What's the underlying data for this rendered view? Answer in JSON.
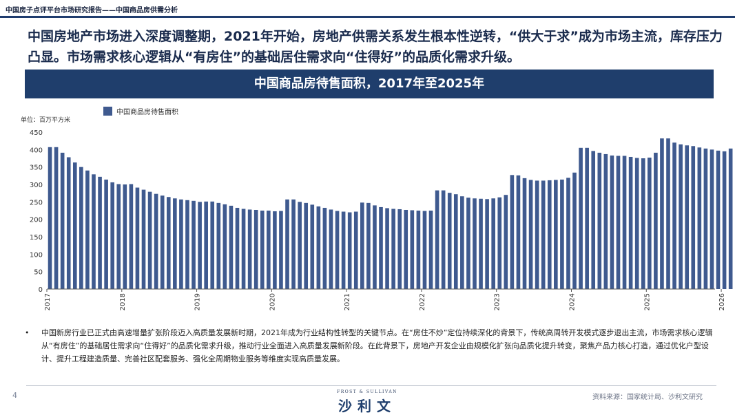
{
  "header": {
    "doc_title": "中国房子点评平台市场研究报告——中国商品房供需分析"
  },
  "headline": "中国房地产市场进入深度调整期，2021年开始，房地产供需关系发生根本性逆转，“供大于求”成为市场主流，库存压力凸显。市场需求核心逻辑从“有房住”的基础居住需求向“住得好”的品质化需求升级。",
  "banner": "中国商品房待售面积，2017年至2025年",
  "chart_data": {
    "type": "bar",
    "title": "中国商品房待售面积，2017年至2025年",
    "ylabel": "单位：百万平方米",
    "legend": "中国商品房待售面积",
    "ylim": [
      0,
      450
    ],
    "yticks": [
      "0",
      "50",
      "100",
      "150",
      "200",
      "250",
      "300",
      "350",
      "400",
      "450"
    ],
    "xtick_labels": [
      "2017",
      "2018",
      "2019",
      "2020",
      "2021",
      "2022",
      "2023",
      "2024",
      "2025",
      "2026"
    ],
    "x_start_year": 2017,
    "values": [
      407,
      407,
      391,
      378,
      363,
      350,
      340,
      329,
      322,
      314,
      306,
      301,
      300,
      301,
      291,
      285,
      279,
      273,
      268,
      264,
      260,
      257,
      255,
      253,
      250,
      251,
      251,
      247,
      243,
      239,
      233,
      230,
      228,
      227,
      225,
      225,
      223,
      224,
      257,
      257,
      250,
      247,
      242,
      237,
      233,
      228,
      224,
      222,
      220,
      222,
      248,
      247,
      240,
      235,
      232,
      230,
      229,
      227,
      226,
      225,
      224,
      225,
      283,
      283,
      276,
      272,
      266,
      262,
      260,
      259,
      258,
      260,
      263,
      270,
      327,
      326,
      318,
      313,
      311,
      311,
      312,
      313,
      314,
      319,
      334,
      405,
      405,
      396,
      391,
      387,
      383,
      382,
      382,
      379,
      376,
      375,
      377,
      391,
      432,
      432,
      420,
      415,
      412,
      410,
      406,
      403,
      400,
      397,
      395,
      403
    ]
  },
  "bullet": "中国新房行业已正式由高速增量扩张阶段迈入高质量发展新时期，2021年成为行业结构性转型的关键节点。在“房住不炒”定位持续深化的背景下，传统高周转开发模式逐步退出主流，市场需求核心逻辑从“有房住”的基础居住需求向“住得好”的品质化需求升级，推动行业全面进入高质量发展新阶段。在此背景下，房地产开发企业由规模化扩张向品质化提升转变，聚焦产品力核心打造，通过优化户型设计、提升工程建造质量、完善社区配套服务、强化全周期物业服务等维度实现高质量发展。",
  "footer": {
    "page_number": "4",
    "logo_small": "FROST & SULLIVAN",
    "logo_main": "沙利文",
    "source": "资料来源：国家统计局、沙利文研究"
  },
  "colors": {
    "bar": "#3f5a8f",
    "banner": "#1f3e6c"
  }
}
